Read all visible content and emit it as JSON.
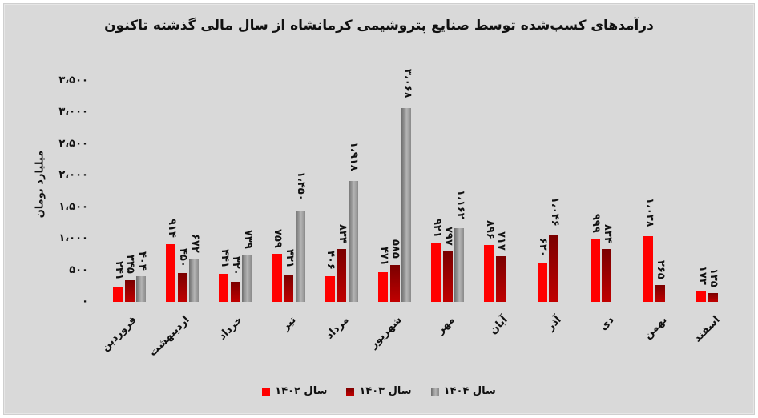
{
  "title": "درآمدهای کسب‌شده توسط صنایع پتروشیمی کرمانشاه از سال مالی گذشته تاکنون",
  "chart_data": {
    "type": "bar",
    "title": "درآمدهای کسب‌شده توسط صنایع پتروشیمی کرمانشاه از سال مالی گذشته تاکنون",
    "xlabel": "",
    "ylabel": "میلیارد تومان",
    "ylim": [
      0,
      3500
    ],
    "yticks": [
      0,
      500,
      1000,
      1500,
      2000,
      2500,
      3000,
      3500
    ],
    "ytick_labels": [
      "۰",
      "۵۰۰",
      "۱،۰۰۰",
      "۱،۵۰۰",
      "۲،۰۰۰",
      "۲،۵۰۰",
      "۳،۰۰۰",
      "۳،۵۰۰"
    ],
    "grid": false,
    "legend_position": "bottom",
    "categories": [
      "فروردین",
      "اردیبهشت",
      "خرداد",
      "تیر",
      "مرداد",
      "شهریور",
      "مهر",
      "آبان",
      "آذر",
      "دی",
      "بهمن",
      "اسفند"
    ],
    "series": [
      {
        "name": "سال ۱۴۰۲",
        "color": "#ff0000",
        "values": [
          241,
          914,
          441,
          759,
          406,
          471,
          921,
          896,
          620,
          999,
          1038,
          173
        ],
        "labels": [
          "۲۴۱",
          "۹۱۴",
          "۴۴۱",
          "۷۵۹",
          "۴۰۶",
          "۴۷۱",
          "۹۲۱",
          "۸۹۶",
          "۶۲۰",
          "۹۹۹",
          "۱،۰۳۸",
          "۱۷۳"
        ]
      },
      {
        "name": "سال ۱۴۰۳",
        "color": "#a00000",
        "values": [
          345,
          450,
          320,
          431,
          834,
          585,
          797,
          717,
          1046,
          834,
          265,
          135
        ],
        "labels": [
          "۳۴۵",
          "۴۵۰",
          "۳۲۰",
          "۴۳۱",
          "۸۳۴",
          "۵۸۵",
          "۷۹۷",
          "۷۱۷",
          "۱،۰۴۶",
          "۸۳۴",
          "۲۶۵",
          "۱۳۵"
        ]
      },
      {
        "name": "سال ۱۴۰۴",
        "color": "#999999",
        "values": [
          404,
          672,
          739,
          1450,
          1918,
          3068,
          1162,
          null,
          null,
          null,
          null,
          null
        ],
        "labels": [
          "۴۰۴",
          "۶۷۲",
          "۷۳۹",
          "۱،۴۵۰",
          "۱،۹۱۸",
          "۳،۰۶۸",
          "۱،۱۶۲",
          null,
          null,
          null,
          null,
          null
        ]
      }
    ]
  },
  "legend": [
    {
      "label": "سال ۱۴۰۲",
      "color": "#ff0000"
    },
    {
      "label": "سال ۱۴۰۳",
      "color": "#a00000"
    },
    {
      "label": "سال ۱۴۰۴",
      "color": "#999999"
    }
  ]
}
